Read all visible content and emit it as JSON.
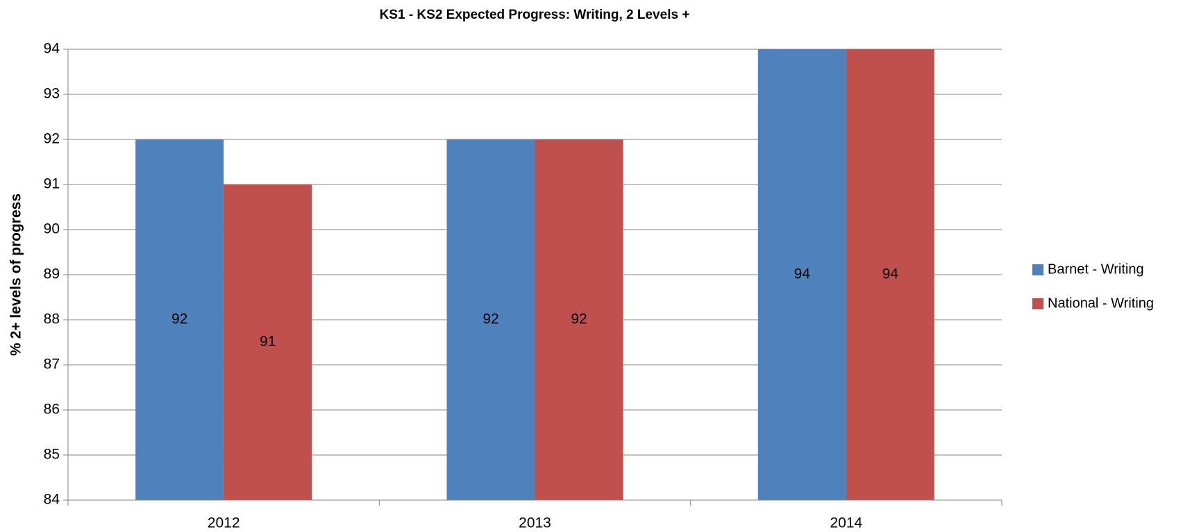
{
  "chart_data": {
    "type": "bar",
    "title": "KS1 - KS2 Expected Progress: Writing, 2 Levels +",
    "y_label": "% 2+ levels of progress",
    "categories": [
      "2012",
      "2013",
      "2014"
    ],
    "series": [
      {
        "name": "Barnet - Writing",
        "color": "#4f81bd",
        "values": [
          92,
          92,
          94
        ]
      },
      {
        "name": "National - Writing",
        "color": "#c0504d",
        "values": [
          91,
          92,
          94
        ]
      }
    ],
    "ylim": [
      84,
      94
    ],
    "yticks": [
      84,
      85,
      86,
      87,
      88,
      89,
      90,
      91,
      92,
      93,
      94
    ],
    "grid": true,
    "legend": "right",
    "data_labels": true
  }
}
